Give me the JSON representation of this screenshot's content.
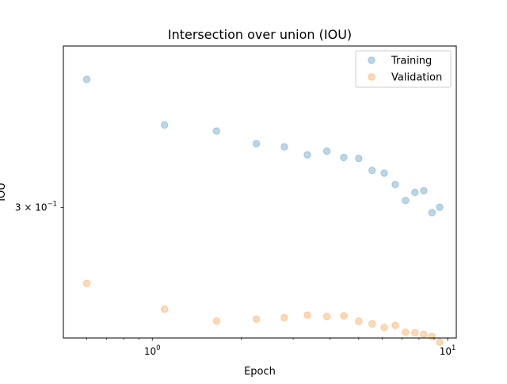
{
  "chart_data": {
    "type": "scatter",
    "title": "Intersection over union (IOU)",
    "xlabel": "Epoch",
    "ylabel": "IOU",
    "xscale": "log",
    "yscale": "log",
    "xlim": [
      0.5,
      10.7
    ],
    "ylim": [
      0.218,
      0.445
    ],
    "x_major_ticks": [
      {
        "value": 1,
        "label_base": "10",
        "label_exp": "0"
      },
      {
        "value": 10,
        "label_base": "10",
        "label_exp": "1"
      }
    ],
    "x_minor_ticks": [
      0.6,
      0.7,
      0.8,
      0.9,
      2,
      3,
      4,
      5,
      6,
      7,
      8,
      9
    ],
    "y_major_ticks": [
      {
        "value": 0.3,
        "label_coef": "3 × 10",
        "label_exp": "−1"
      }
    ],
    "grid": false,
    "legend_position": "top-right",
    "series": [
      {
        "name": "Training",
        "color": "#1f77b4",
        "alpha": 0.3,
        "x": [
          0.6,
          1.1,
          1.65,
          2.25,
          2.8,
          3.35,
          3.9,
          4.45,
          5.0,
          5.55,
          6.1,
          6.65,
          7.2,
          7.75,
          8.3,
          8.85,
          9.4
        ],
        "y": [
          0.4102,
          0.3669,
          0.3616,
          0.3505,
          0.3478,
          0.3411,
          0.3442,
          0.3389,
          0.3381,
          0.3283,
          0.3262,
          0.3172,
          0.3051,
          0.3112,
          0.3124,
          0.2961,
          0.3001
        ]
      },
      {
        "name": "Validation",
        "color": "#ff7f0e",
        "alpha": 0.3,
        "x": [
          0.6,
          1.1,
          1.65,
          2.25,
          2.8,
          3.35,
          3.9,
          4.45,
          5.0,
          5.55,
          6.1,
          6.65,
          7.2,
          7.75,
          8.3,
          8.85,
          9.4
        ],
        "y": [
          0.2491,
          0.2339,
          0.2272,
          0.2283,
          0.2291,
          0.2306,
          0.2298,
          0.2302,
          0.2271,
          0.2257,
          0.2237,
          0.2248,
          0.2211,
          0.2208,
          0.22,
          0.2188,
          0.2158
        ]
      }
    ]
  }
}
